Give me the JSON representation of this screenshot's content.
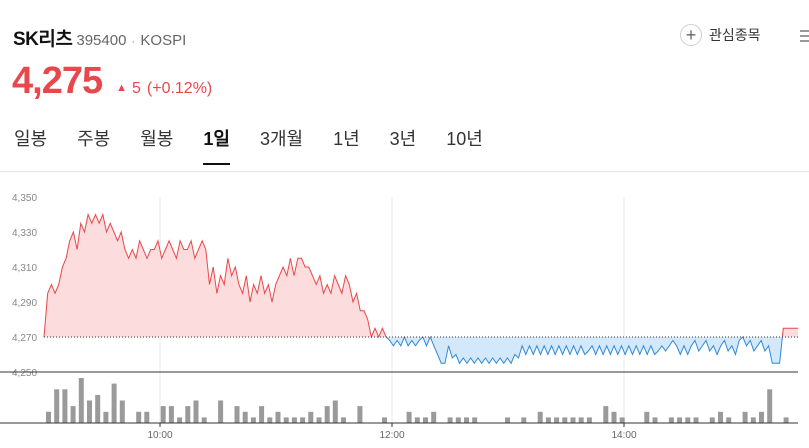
{
  "stock": {
    "name": "SK리츠",
    "code": "395400",
    "separator": "·",
    "market": "KOSPI",
    "price": "4,275",
    "change": "5",
    "change_pct": "(+0.12%)",
    "watch_label": "관심종목"
  },
  "icons": {
    "watch": "plus-circle-icon",
    "change": "triangle-up-icon",
    "more": "more-icon"
  },
  "colors": {
    "up": "#e8474b",
    "down": "#2f8ad8",
    "up_fill": "#fcdcdc",
    "down_fill": "#d3e8fb",
    "volume": "#9a9a9a"
  },
  "tabs": [
    "일봉",
    "주봉",
    "월봉",
    "1일",
    "3개월",
    "1년",
    "3년",
    "10년"
  ],
  "active_tab": "1일",
  "chart_data": {
    "type": "line",
    "x_start": "09:00",
    "x_end": "15:30",
    "xticks": [
      "10:00",
      "12:00",
      "14:00"
    ],
    "ylim": [
      4250,
      4350
    ],
    "yticks": [
      "4,350",
      "4,330",
      "4,310",
      "4,290",
      "4,270",
      "4,250"
    ],
    "reference": 4270,
    "series": [
      {
        "values": [
          4270,
          4295,
          4300,
          4295,
          4300,
          4310,
          4315,
          4325,
          4330,
          4320,
          4335,
          4330,
          4340,
          4335,
          4340,
          4335,
          4340,
          4330,
          4335,
          4330,
          4325,
          4330,
          4320,
          4315,
          4320,
          4315,
          4325,
          4320,
          4315,
          4320,
          4320,
          4325,
          4315,
          4320,
          4325,
          4320,
          4315,
          4325,
          4320,
          4320,
          4325,
          4315,
          4320,
          4325,
          4320,
          4300,
          4310,
          4295,
          4305,
          4300,
          4315,
          4305,
          4310,
          4300,
          4295,
          4305,
          4290,
          4300,
          4295,
          4305,
          4295,
          4300,
          4290,
          4300,
          4305,
          4310,
          4305,
          4315,
          4305,
          4315,
          4315,
          4310,
          4310,
          4305,
          4300,
          4305,
          4295,
          4300,
          4295,
          4305,
          4300,
          4295,
          4305,
          4300,
          4290,
          4295,
          4285,
          4285,
          4280,
          4270,
          4275,
          4270,
          4275,
          4270,
          4268,
          4265,
          4268,
          4265,
          4270,
          4265,
          4268,
          4265,
          4268,
          4270,
          4265,
          4270,
          4265,
          4260,
          4255,
          4255,
          4265,
          4258,
          4260,
          4255,
          4258,
          4255,
          4258,
          4255,
          4258,
          4255,
          4258,
          4255,
          4258,
          4255,
          4258,
          4255,
          4258,
          4255,
          4260,
          4258,
          4265,
          4260,
          4265,
          4260,
          4265,
          4260,
          4265,
          4260,
          4265,
          4260,
          4265,
          4260,
          4265,
          4260,
          4265,
          4260,
          4265,
          4260,
          4262,
          4265,
          4260,
          4265,
          4260,
          4265,
          4260,
          4265,
          4260,
          4265,
          4260,
          4265,
          4260,
          4265,
          4260,
          4265,
          4260,
          4265,
          4260,
          4262,
          4265,
          4262,
          4265,
          4268,
          4265,
          4260,
          4265,
          4260,
          4265,
          4268,
          4262,
          4265,
          4268,
          4262,
          4265,
          4260,
          4265,
          4268,
          4262,
          4265,
          4260,
          4268,
          4270,
          4265,
          4268,
          4262,
          4265,
          4268,
          4262,
          4265,
          4255,
          4255,
          4255,
          4275,
          4275,
          4275,
          4275,
          4275
        ]
      }
    ],
    "volume": [
      2,
      6,
      6,
      3,
      8,
      4,
      5,
      2,
      7,
      4,
      0,
      2,
      2,
      0,
      3,
      3,
      1,
      3,
      4,
      1,
      0,
      4,
      0,
      3,
      2,
      1,
      3,
      1,
      2,
      1,
      1,
      1,
      2,
      1,
      3,
      4,
      1,
      0,
      3,
      0,
      0,
      1,
      0,
      0,
      2,
      1,
      1,
      2,
      0,
      1,
      1,
      1,
      1,
      0,
      0,
      0,
      1,
      0,
      1,
      0,
      2,
      1,
      1,
      1,
      1,
      1,
      1,
      0,
      3,
      2,
      1,
      0,
      0,
      2,
      1,
      0,
      1,
      1,
      1,
      1,
      0,
      1,
      2,
      1,
      0,
      2,
      1,
      2,
      6,
      0,
      1,
      0
    ]
  }
}
